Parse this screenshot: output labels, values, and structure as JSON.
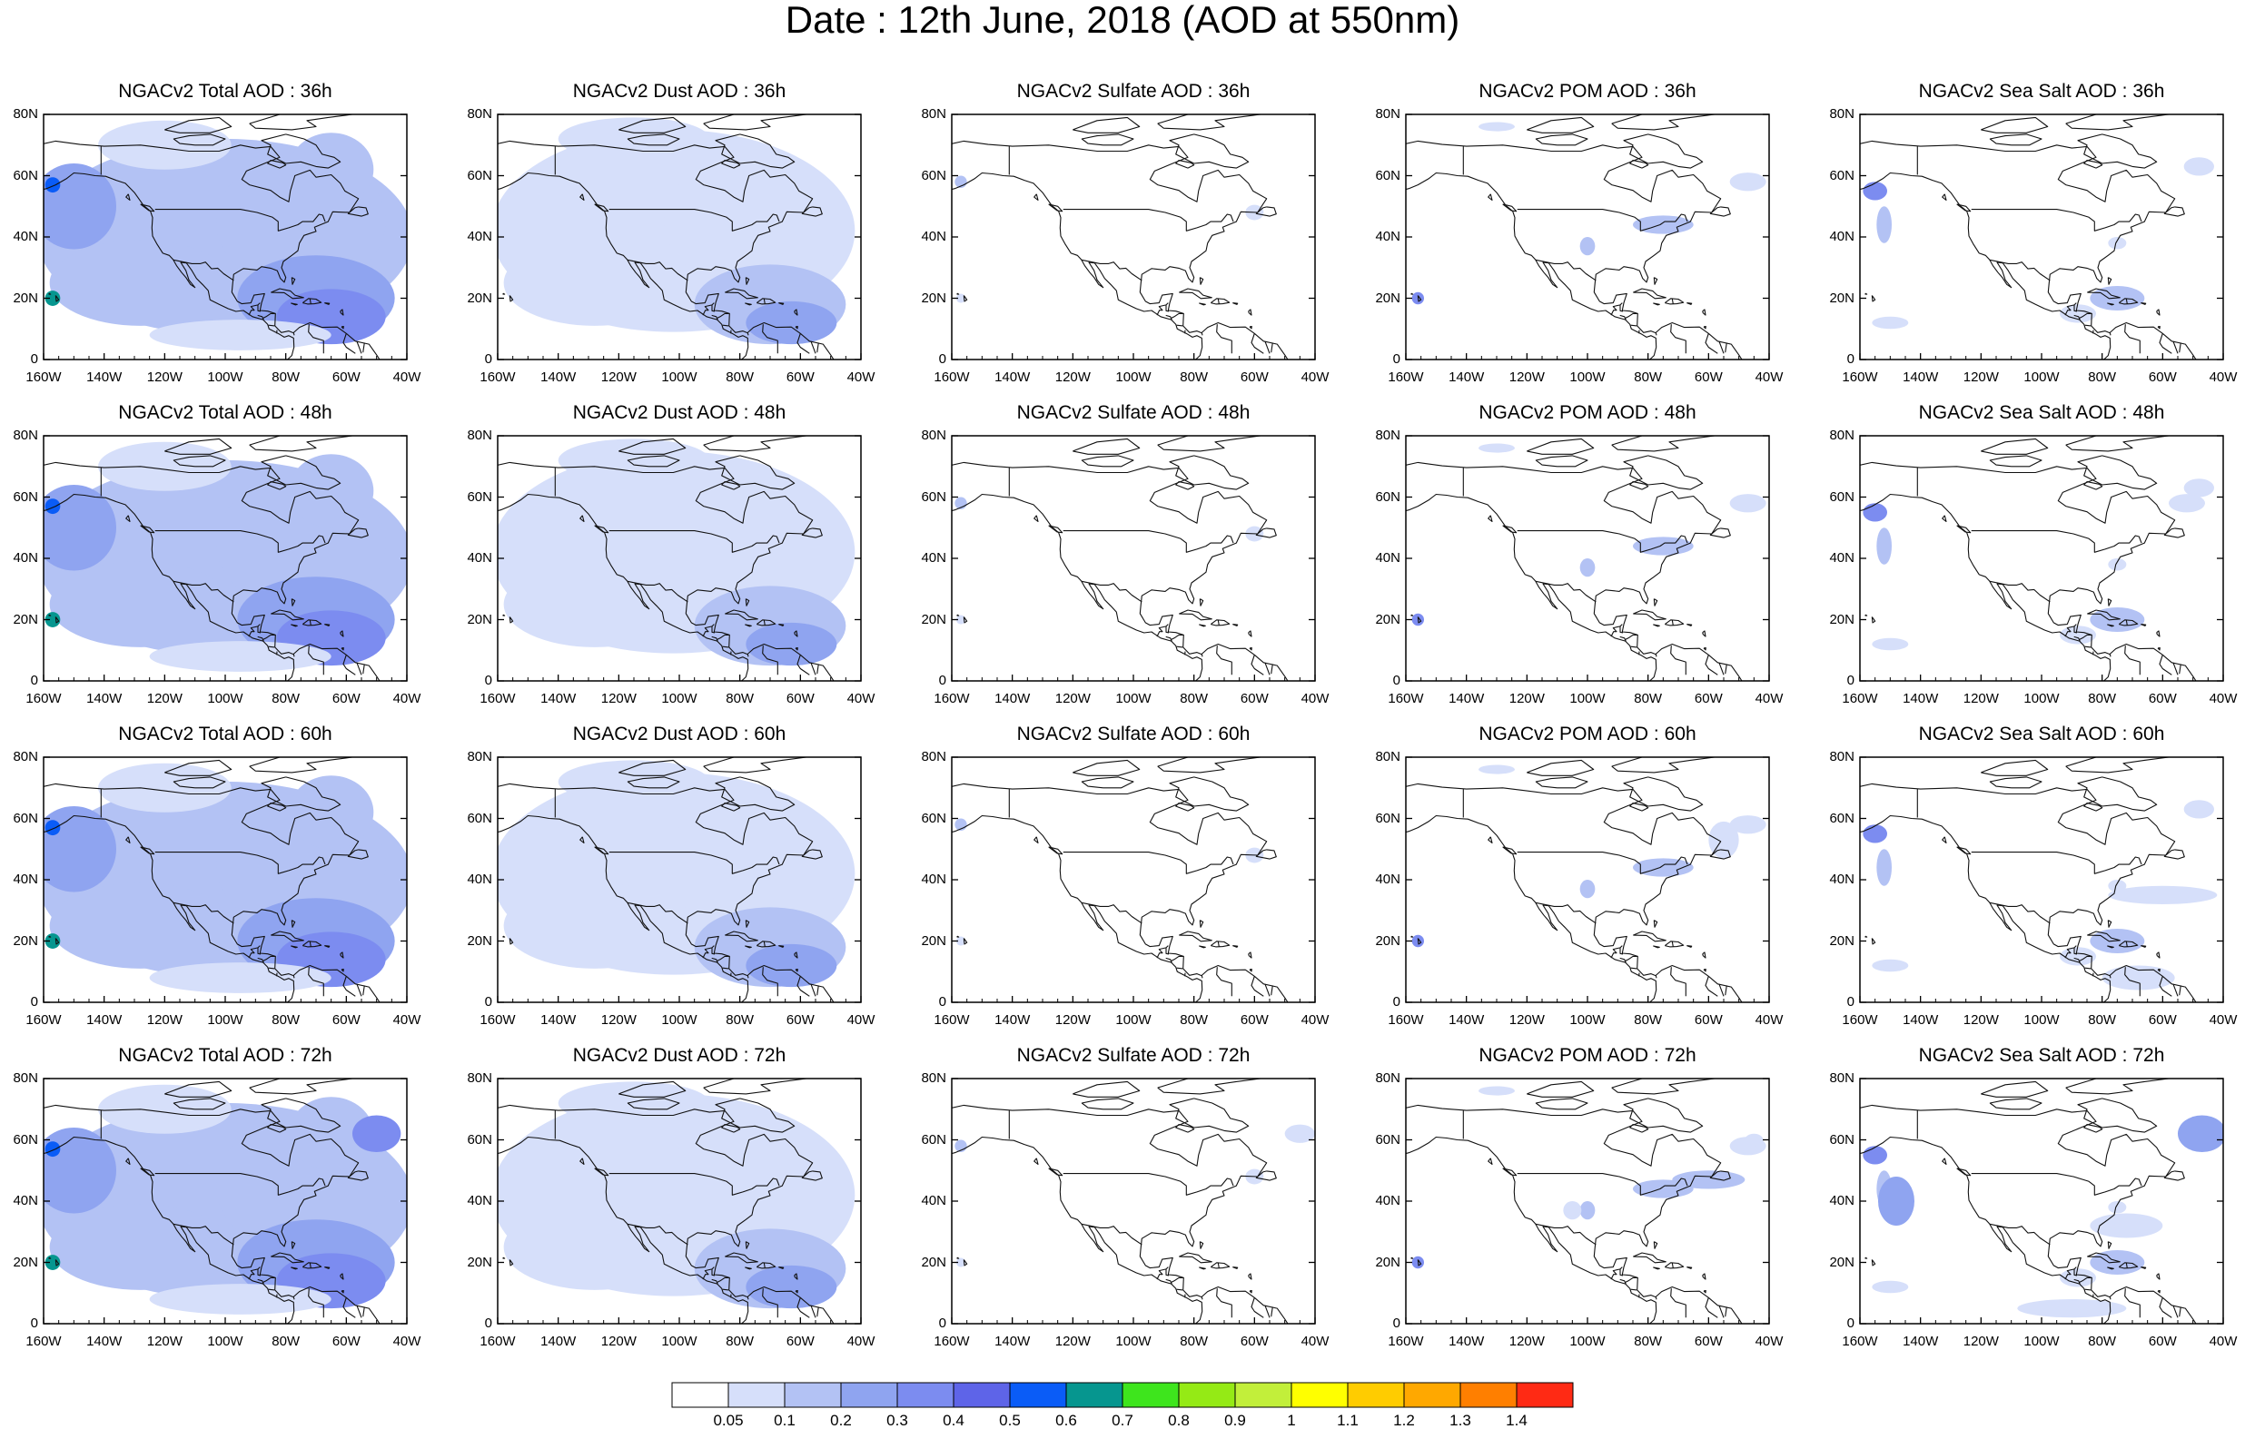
{
  "title": "Date : 12th June, 2018 (AOD at 550nm)",
  "map_extent": {
    "lon_range": [
      -160,
      -40
    ],
    "lat_range": [
      0,
      80
    ]
  },
  "lat_ticks": [
    "80N",
    "60N",
    "40N",
    "20N",
    "0"
  ],
  "lon_ticks": [
    "160W",
    "140W",
    "120W",
    "100W",
    "80W",
    "60W",
    "40W"
  ],
  "panels": [
    {
      "title": "NGACv2 Total AOD : 36h",
      "variable": "total",
      "lead_hours": 36
    },
    {
      "title": "NGACv2 Dust AOD : 36h",
      "variable": "dust",
      "lead_hours": 36
    },
    {
      "title": "NGACv2 Sulfate AOD : 36h",
      "variable": "sulfate",
      "lead_hours": 36
    },
    {
      "title": "NGACv2 POM AOD : 36h",
      "variable": "pom",
      "lead_hours": 36
    },
    {
      "title": "NGACv2 Sea Salt AOD : 36h",
      "variable": "seasalt",
      "lead_hours": 36
    },
    {
      "title": "NGACv2 Total AOD : 48h",
      "variable": "total",
      "lead_hours": 48
    },
    {
      "title": "NGACv2 Dust AOD : 48h",
      "variable": "dust",
      "lead_hours": 48
    },
    {
      "title": "NGACv2 Sulfate AOD : 48h",
      "variable": "sulfate",
      "lead_hours": 48
    },
    {
      "title": "NGACv2 POM AOD : 48h",
      "variable": "pom",
      "lead_hours": 48
    },
    {
      "title": "NGACv2 Sea Salt AOD : 48h",
      "variable": "seasalt",
      "lead_hours": 48
    },
    {
      "title": "NGACv2 Total AOD : 60h",
      "variable": "total",
      "lead_hours": 60
    },
    {
      "title": "NGACv2 Dust AOD : 60h",
      "variable": "dust",
      "lead_hours": 60
    },
    {
      "title": "NGACv2 Sulfate AOD : 60h",
      "variable": "sulfate",
      "lead_hours": 60
    },
    {
      "title": "NGACv2 POM AOD : 60h",
      "variable": "pom",
      "lead_hours": 60
    },
    {
      "title": "NGACv2 Sea Salt AOD : 60h",
      "variable": "seasalt",
      "lead_hours": 60
    },
    {
      "title": "NGACv2 Total AOD : 72h",
      "variable": "total",
      "lead_hours": 72
    },
    {
      "title": "NGACv2 Dust AOD : 72h",
      "variable": "dust",
      "lead_hours": 72
    },
    {
      "title": "NGACv2 Sulfate AOD : 72h",
      "variable": "sulfate",
      "lead_hours": 72
    },
    {
      "title": "NGACv2 POM AOD : 72h",
      "variable": "pom",
      "lead_hours": 72
    },
    {
      "title": "NGACv2 Sea Salt  AOD : 72h",
      "variable": "seasalt",
      "lead_hours": 72
    }
  ],
  "colorbar": {
    "ticks": [
      "0.05",
      "0.1",
      "0.2",
      "0.3",
      "0.4",
      "0.5",
      "0.6",
      "0.7",
      "0.8",
      "0.9",
      "1",
      "1.1",
      "1.2",
      "1.3",
      "1.4"
    ],
    "colors": [
      "#ffffff",
      "#d6dffa",
      "#b3c2f4",
      "#8fa4f0",
      "#7c8cf0",
      "#5e64e8",
      "#0a5cf7",
      "#06968f",
      "#3ee51d",
      "#95ea15",
      "#c2ef3a",
      "#ffff00",
      "#ffcc00",
      "#ffa800",
      "#ff7f00",
      "#ff2a14"
    ]
  }
}
